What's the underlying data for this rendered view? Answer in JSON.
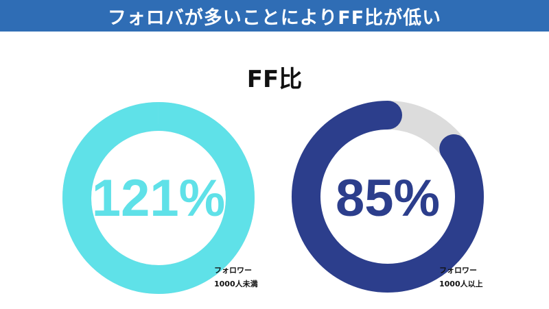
{
  "banner": {
    "title": "フォロバが多いことによりFF比が低い"
  },
  "colors": {
    "banner": "#2f6db5",
    "under1000": "#5fe1e8",
    "over1000": "#2c3e8c",
    "track": "#dcdcdc"
  },
  "chart_data": {
    "type": "pie",
    "title": "FF比",
    "series": [
      {
        "name": "フォロワー1000人未満",
        "value": 121,
        "display": "121%",
        "caption_lines": [
          "フォロワー",
          "1000人未満"
        ]
      },
      {
        "name": "フォロワー1000人以上",
        "value": 85,
        "display": "85%",
        "caption_lines": [
          "フォロワー",
          "1000人以上"
        ]
      }
    ],
    "unit": "%",
    "max": 100
  }
}
